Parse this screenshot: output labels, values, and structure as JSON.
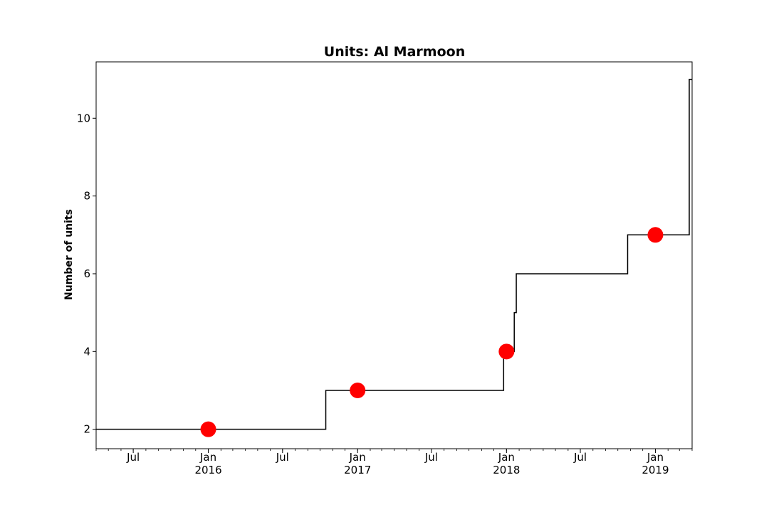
{
  "chart_data": {
    "type": "line",
    "title": "Units: Al Marmoon",
    "xlabel": "",
    "ylabel": "Number of units",
    "x_range": [
      "2015-04-01",
      "2019-04-01"
    ],
    "ylim": [
      1.5,
      11.45
    ],
    "y_ticks": [
      2,
      4,
      6,
      8,
      10
    ],
    "x_ticks": [
      {
        "date": "2015-07-01",
        "label": "Jul",
        "year": ""
      },
      {
        "date": "2016-01-01",
        "label": "Jan",
        "year": "2016"
      },
      {
        "date": "2016-07-01",
        "label": "Jul",
        "year": ""
      },
      {
        "date": "2017-01-01",
        "label": "Jan",
        "year": "2017"
      },
      {
        "date": "2017-07-01",
        "label": "Jul",
        "year": ""
      },
      {
        "date": "2018-01-01",
        "label": "Jan",
        "year": "2018"
      },
      {
        "date": "2018-07-01",
        "label": "Jul",
        "year": ""
      },
      {
        "date": "2019-01-01",
        "label": "Jan",
        "year": "2019"
      }
    ],
    "grid": false,
    "series": [
      {
        "type": "step",
        "color": "#000000",
        "points": [
          {
            "x": "2015-04-01",
            "y": 2
          },
          {
            "x": "2016-10-15",
            "y": 2
          },
          {
            "x": "2016-10-15",
            "y": 3
          },
          {
            "x": "2017-12-25",
            "y": 3
          },
          {
            "x": "2017-12-25",
            "y": 4
          },
          {
            "x": "2018-01-20",
            "y": 4
          },
          {
            "x": "2018-01-20",
            "y": 5
          },
          {
            "x": "2018-01-25",
            "y": 5
          },
          {
            "x": "2018-01-25",
            "y": 6
          },
          {
            "x": "2018-10-25",
            "y": 6
          },
          {
            "x": "2018-10-25",
            "y": 7
          },
          {
            "x": "2019-03-25",
            "y": 7
          },
          {
            "x": "2019-03-25",
            "y": 11
          },
          {
            "x": "2019-04-01",
            "y": 11
          }
        ]
      },
      {
        "type": "scatter",
        "color": "#ff0000",
        "points": [
          {
            "x": "2016-01-01",
            "y": 2
          },
          {
            "x": "2017-01-01",
            "y": 3
          },
          {
            "x": "2018-01-01",
            "y": 4
          },
          {
            "x": "2019-01-01",
            "y": 7
          }
        ]
      }
    ]
  }
}
